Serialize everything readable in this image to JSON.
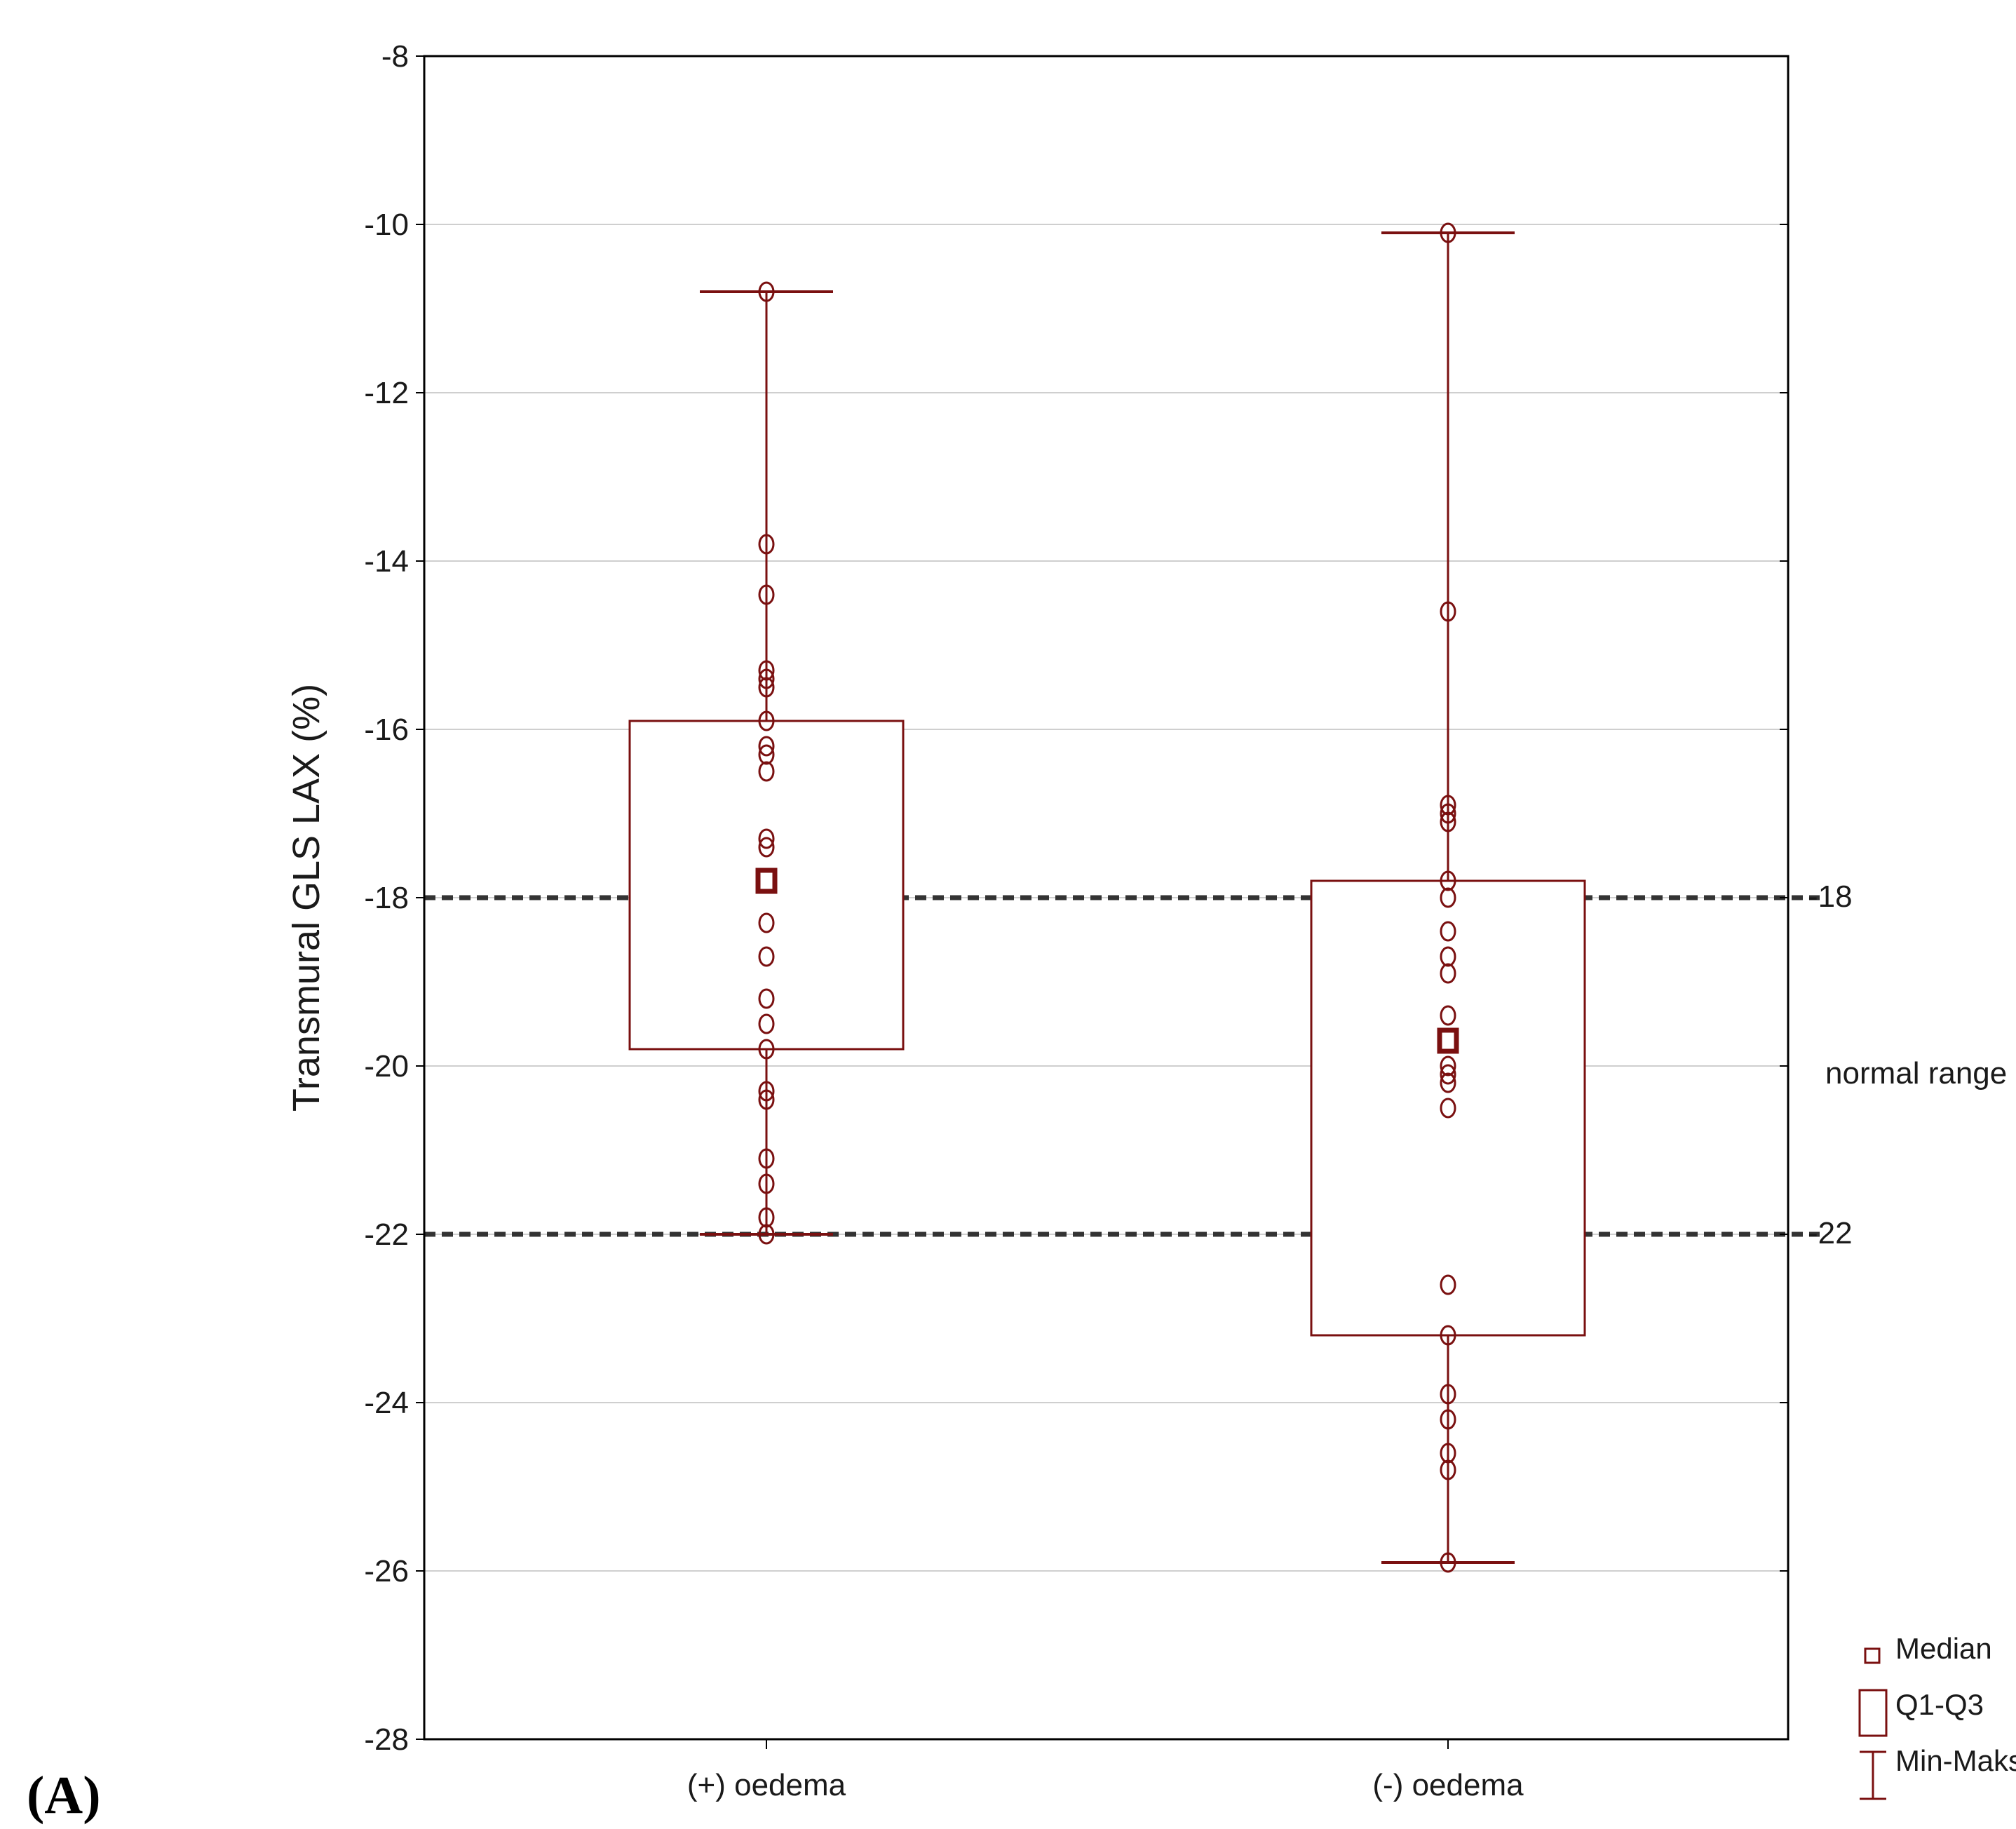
{
  "chart_data": {
    "type": "boxplot",
    "panel_label": "(A)",
    "ylabel": "Transmural GLS LAX (%)",
    "ylim": [
      -28,
      -8
    ],
    "yticks": [
      -8,
      -10,
      -12,
      -14,
      -16,
      -18,
      -20,
      -22,
      -24,
      -26,
      -28
    ],
    "grid": true,
    "categories": [
      "(+) oedema",
      "(-) oedema"
    ],
    "groups": [
      {
        "name": "(+) oedema",
        "min": -22.0,
        "q1": -19.8,
        "median": -17.8,
        "q3": -15.9,
        "max": -10.8,
        "points": [
          -10.8,
          -13.8,
          -14.4,
          -15.3,
          -15.4,
          -15.5,
          -15.9,
          -16.2,
          -16.3,
          -16.5,
          -17.3,
          -17.4,
          -17.8,
          -18.3,
          -18.7,
          -19.2,
          -19.5,
          -19.8,
          -20.3,
          -20.4,
          -21.1,
          -21.4,
          -21.8,
          -22.0
        ]
      },
      {
        "name": "(-) oedema",
        "min": -25.9,
        "q1": -23.2,
        "median": -19.7,
        "q3": -17.8,
        "max": -10.1,
        "points": [
          -10.1,
          -14.6,
          -16.9,
          -17.0,
          -17.1,
          -17.8,
          -18.0,
          -18.4,
          -18.7,
          -18.9,
          -19.4,
          -19.7,
          -20.0,
          -20.1,
          -20.2,
          -20.5,
          -22.6,
          -23.2,
          -23.9,
          -24.2,
          -24.6,
          -24.8,
          -25.9
        ]
      }
    ],
    "reference_lines": {
      "values": [
        -18,
        -22
      ],
      "labels": [
        "-18",
        "-22"
      ],
      "range_label": "normal range",
      "style": "dashed"
    },
    "legend": {
      "position": "bottom-right",
      "entries": [
        "Median",
        "Q1-Q3",
        "Min-Maks"
      ]
    },
    "colors": {
      "box": "#7a1010",
      "grid": "#cfcfcf",
      "reference": "#333333",
      "axis": "#000000"
    }
  }
}
